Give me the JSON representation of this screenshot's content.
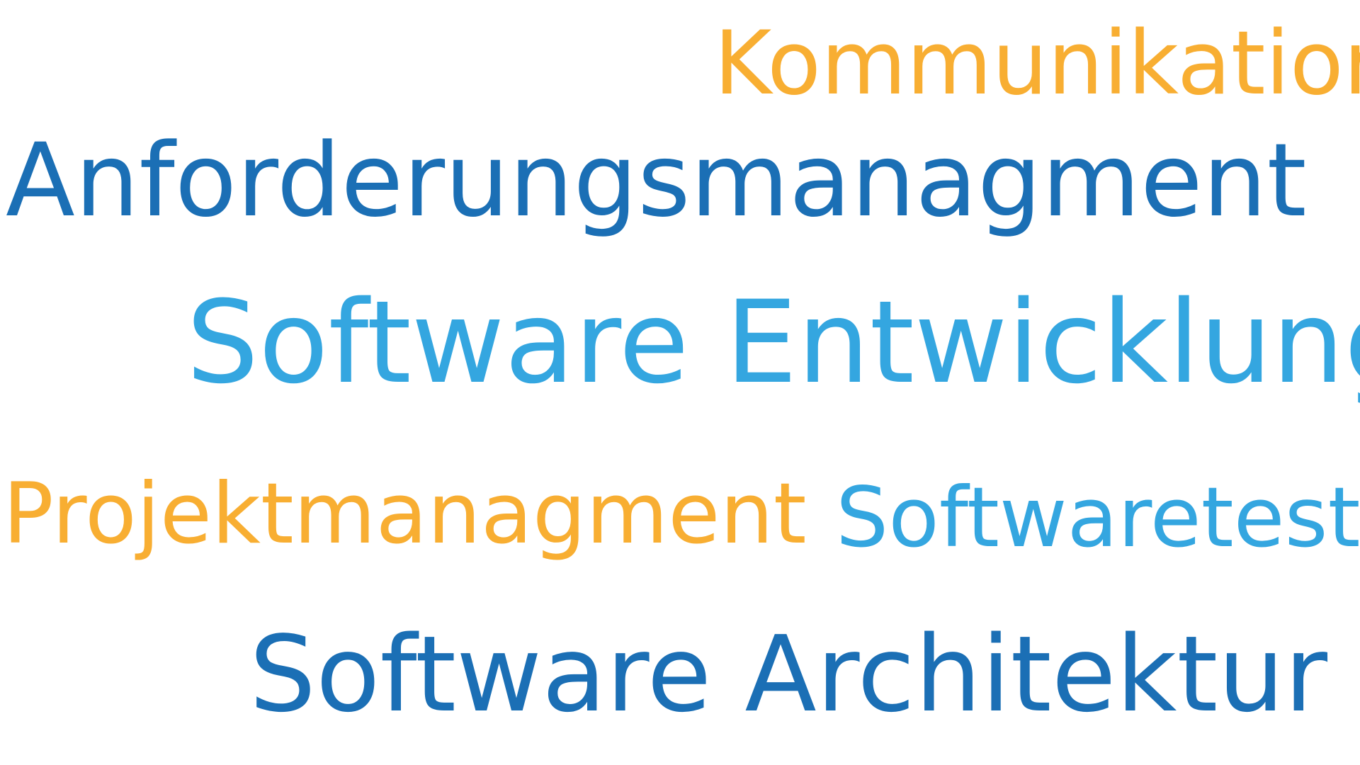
{
  "colors": {
    "orange": "#F8AE32",
    "dark_blue": "#1B6FB5",
    "light_blue": "#34A6E0"
  },
  "words": {
    "kommunikation": {
      "text": "Kommunikation",
      "color": "#F8AE32"
    },
    "anforderungsmanagment": {
      "text": "Anforderungsmanagment",
      "color": "#1B6FB5"
    },
    "software_entwicklung": {
      "text": "Software Entwicklung",
      "color": "#34A6E0"
    },
    "projektmanagment": {
      "text": "Projektmanagment",
      "color": "#F8AE32"
    },
    "softwaretest": {
      "text": "Softwaretest",
      "color": "#34A6E0"
    },
    "software_architektur": {
      "text": "Software Architektur",
      "color": "#1B6FB5"
    }
  }
}
